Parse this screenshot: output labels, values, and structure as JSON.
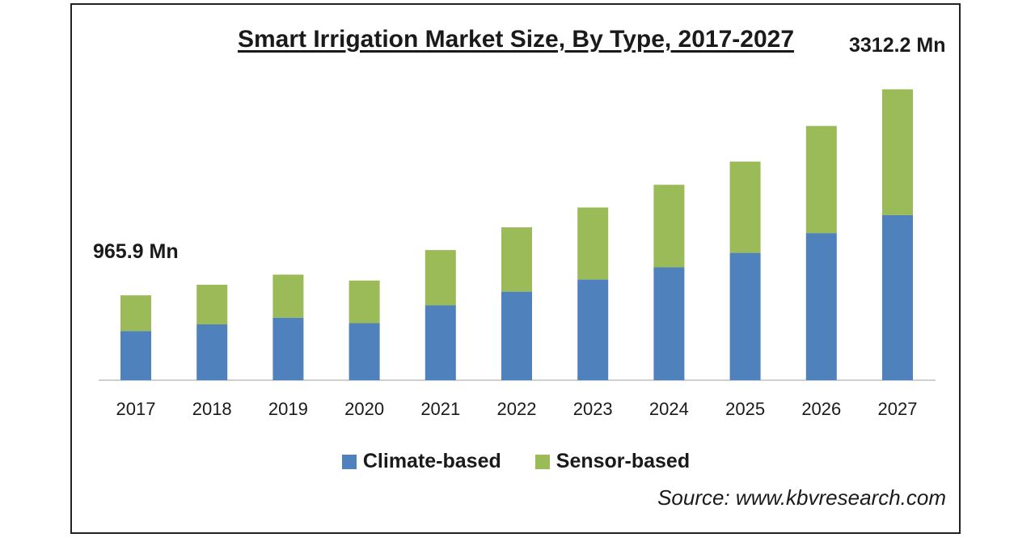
{
  "chart_data": {
    "type": "bar",
    "stacked": true,
    "title": "Smart Irrigation Market Size, By Type, 2017-2027",
    "xlabel": "",
    "ylabel": "",
    "unit": "Mn",
    "ylim": [
      0,
      3500
    ],
    "categories": [
      "2017",
      "2018",
      "2019",
      "2020",
      "2021",
      "2022",
      "2023",
      "2024",
      "2025",
      "2026",
      "2027"
    ],
    "series": [
      {
        "name": "Climate-based",
        "color": "#4f81bd",
        "values": [
          560,
          636,
          712,
          650,
          852,
          1008,
          1146,
          1285,
          1450,
          1675,
          1880
        ]
      },
      {
        "name": "Sensor-based",
        "color": "#9bbb59",
        "values": [
          406,
          451,
          490,
          485,
          630,
          733,
          820,
          940,
          1040,
          1220,
          1432
        ]
      }
    ],
    "annotations": [
      {
        "category": "2017",
        "label": "965.9 Mn"
      },
      {
        "category": "2027",
        "label": "3312.2 Mn"
      }
    ],
    "source": "Source: www.kbvresearch.com"
  }
}
